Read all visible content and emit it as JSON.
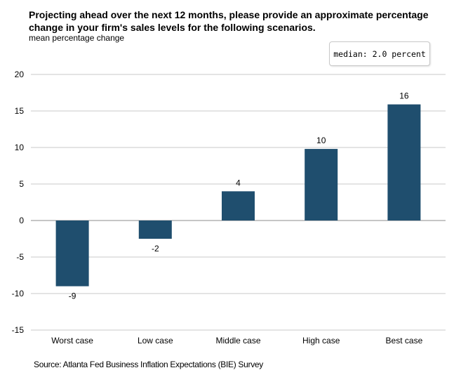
{
  "title": "Projecting ahead over the next 12 months, please provide an approximate percentage change in your firm's sales levels for the following scenarios.",
  "subtitle": "mean percentage  change",
  "annotation": "median: 2.0 percent",
  "source": "Source: Atlanta Fed Business Inflation Expectations (BIE) Survey",
  "colors": {
    "bar": "#1f4e6e",
    "grid": "#c8c8c8",
    "axis": "#8c8c8c"
  },
  "chart_data": {
    "type": "bar",
    "title": "Projecting ahead over the next 12 months, please provide an approximate percentage change in your firm's sales levels for the following scenarios.",
    "ylabel": "mean percentage  change",
    "xlabel": "",
    "categories": [
      "Worst case",
      "Low case",
      "Middle case",
      "High case",
      "Best case"
    ],
    "values": [
      -9,
      -2.5,
      4,
      9.8,
      15.9
    ],
    "data_labels": [
      "-9",
      "-2",
      "4",
      "10",
      "16"
    ],
    "ylim": [
      -15,
      20
    ],
    "yticks": [
      20,
      15,
      10,
      5,
      0,
      -5,
      -10,
      -15
    ],
    "grid": true,
    "legend": "none"
  }
}
